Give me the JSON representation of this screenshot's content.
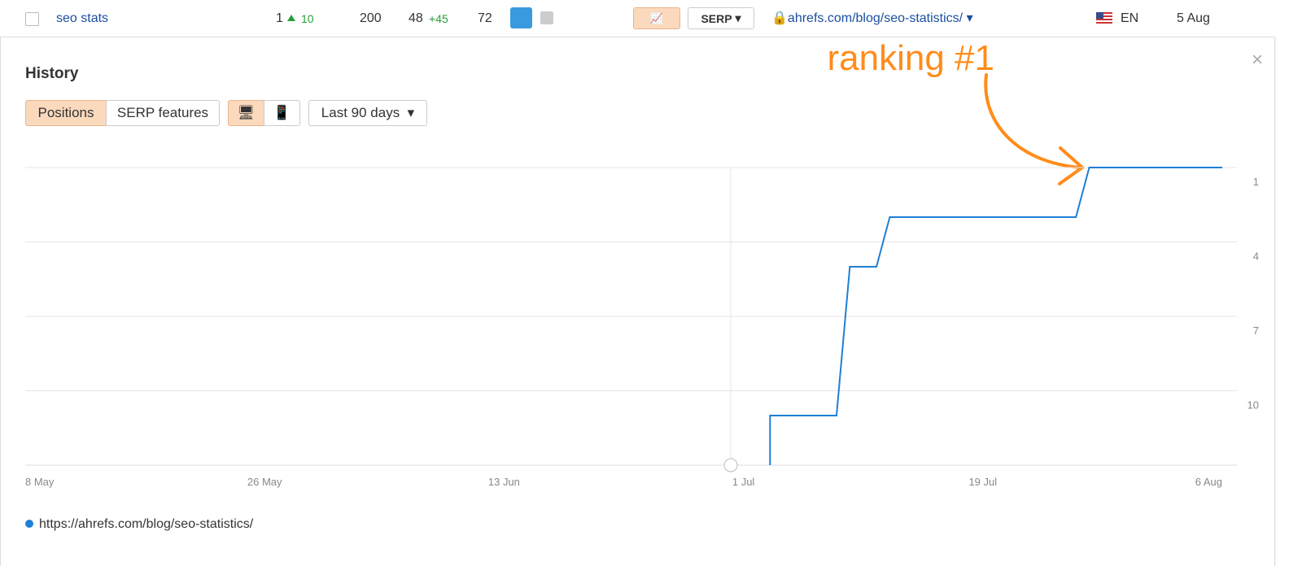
{
  "top_row": {
    "keyword": "seo stats",
    "position": "1",
    "position_change": "10",
    "volume": "200",
    "traffic": "48",
    "traffic_change": "+45",
    "kd": "72",
    "serp_button": "SERP",
    "url": "ahrefs.com/blog/seo-statistics/",
    "language": "EN",
    "date": "5 Aug"
  },
  "panel": {
    "title": "History",
    "tabs": [
      "Positions",
      "SERP features"
    ],
    "range": "Last 90 days"
  },
  "chart_data": {
    "type": "line",
    "annotation": "ranking #1",
    "x": [
      56,
      56,
      61,
      62,
      64,
      65,
      79,
      80,
      90
    ],
    "series": [
      {
        "name": "https://ahrefs.com/blog/seo-statistics/",
        "color": "#1e7fd6",
        "values": [
          13,
          11,
          11,
          5,
          5,
          3,
          3,
          1,
          1
        ]
      }
    ],
    "xlim": [
      0,
      90
    ],
    "xticks": [
      {
        "value": 0,
        "label": "8 May"
      },
      {
        "value": 18,
        "label": "26 May"
      },
      {
        "value": 36,
        "label": "13 Jun"
      },
      {
        "value": 54,
        "label": "1 Jul"
      },
      {
        "value": 72,
        "label": "19 Jul"
      },
      {
        "value": 90,
        "label": "6 Aug"
      }
    ],
    "ylim": [
      13,
      1
    ],
    "yticks": [
      1,
      4,
      7,
      10
    ],
    "grid": true
  }
}
